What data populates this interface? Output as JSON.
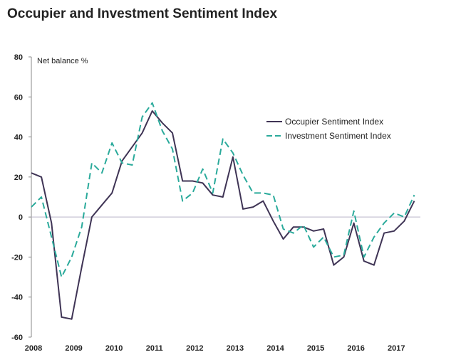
{
  "chart_data": {
    "type": "line",
    "title": "Occupier and Investment Sentiment Index",
    "ylabel": "Net balance %",
    "ylim": [
      -60,
      80
    ],
    "yticks": [
      80,
      60,
      40,
      20,
      0,
      -20,
      -40,
      -60
    ],
    "xlim": [
      2008,
      2017.6
    ],
    "xticks": [
      "2008",
      "2009",
      "2010",
      "2011",
      "2012",
      "2013",
      "2014",
      "2015",
      "2016",
      "2017"
    ],
    "legend_position": "right",
    "series": [
      {
        "name": "Occupier Sentiment Index",
        "color": "#3f3455",
        "style": "solid",
        "x": [
          2008.0,
          2008.25,
          2008.5,
          2008.75,
          2009.0,
          2009.25,
          2009.5,
          2009.75,
          2010.0,
          2010.25,
          2010.5,
          2010.75,
          2011.0,
          2011.25,
          2011.5,
          2011.75,
          2012.0,
          2012.25,
          2012.5,
          2012.75,
          2013.0,
          2013.25,
          2013.5,
          2013.75,
          2014.0,
          2014.25,
          2014.5,
          2014.75,
          2015.0,
          2015.25,
          2015.5,
          2015.75,
          2016.0,
          2016.25,
          2016.5,
          2016.75,
          2017.0,
          2017.25,
          2017.5
        ],
        "values": [
          22,
          20,
          -3,
          -50,
          -51,
          -25,
          0,
          6,
          12,
          28,
          35,
          42,
          53,
          47,
          42,
          18,
          18,
          17,
          11,
          10,
          30,
          4,
          5,
          8,
          -2,
          -11,
          -5,
          -5,
          -7,
          -6,
          -24,
          -20,
          -3,
          -22,
          -24,
          -8,
          -7,
          -2,
          8
        ]
      },
      {
        "name": "Investment Sentiment Index",
        "color": "#2aaa9b",
        "style": "dashed",
        "x": [
          2008.0,
          2008.25,
          2008.5,
          2008.75,
          2009.0,
          2009.25,
          2009.5,
          2009.75,
          2010.0,
          2010.25,
          2010.5,
          2010.75,
          2011.0,
          2011.25,
          2011.5,
          2011.75,
          2012.0,
          2012.25,
          2012.5,
          2012.75,
          2013.0,
          2013.25,
          2013.5,
          2013.75,
          2014.0,
          2014.25,
          2014.5,
          2014.75,
          2015.0,
          2015.25,
          2015.5,
          2015.75,
          2016.0,
          2016.25,
          2016.5,
          2016.75,
          2017.0,
          2017.25,
          2017.5
        ],
        "values": [
          5,
          10,
          -10,
          -30,
          -20,
          -5,
          27,
          22,
          37,
          27,
          26,
          50,
          57,
          43,
          34,
          8,
          12,
          24,
          12,
          39,
          32,
          21,
          12,
          12,
          11,
          -6,
          -8,
          -4,
          -15,
          -10,
          -20,
          -19,
          3,
          -20,
          -10,
          -3,
          2,
          0,
          11
        ]
      }
    ]
  }
}
